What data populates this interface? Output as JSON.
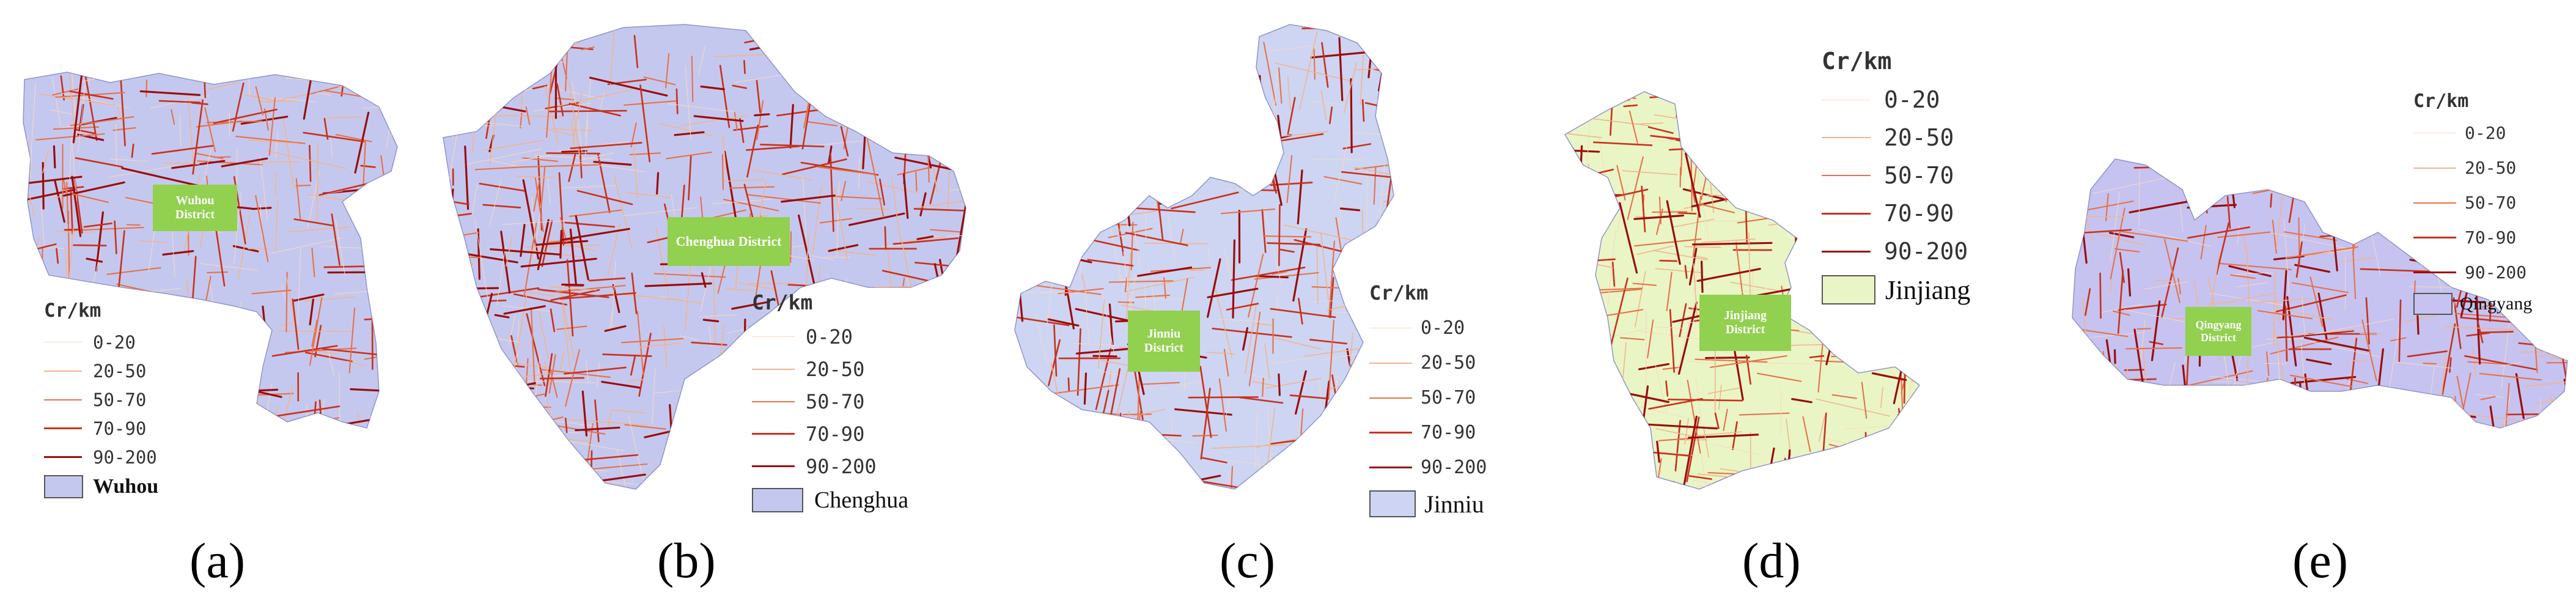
{
  "legend": {
    "title": "Cr/km",
    "classes": [
      {
        "range": "0-20",
        "color": "#f7d9c4"
      },
      {
        "range": "20-50",
        "color": "#f0b48f"
      },
      {
        "range": "50-70",
        "color": "#e6714a"
      },
      {
        "range": "70-90",
        "color": "#c8321e"
      },
      {
        "range": "90-200",
        "color": "#9a0d0d"
      }
    ]
  },
  "panels": [
    {
      "id": "a",
      "label_open": "(",
      "letter": "a",
      "label_close": ")",
      "badge_line1": "Wuhou",
      "badge_line2": "District",
      "legend_district": "Wuhou",
      "fill": "#c5c8ee"
    },
    {
      "id": "b",
      "label_open": "(",
      "letter": "b",
      "label_close": ")",
      "badge_line1": "Chenghua District",
      "badge_line2": "",
      "legend_district": "Chenghua",
      "fill": "#c5c8ee"
    },
    {
      "id": "c",
      "label_open": "(",
      "letter": "c",
      "label_close": ")",
      "badge_line1": "Jinniu",
      "badge_line2": "District",
      "legend_district": "Jinniu",
      "fill": "#cdd5f2"
    },
    {
      "id": "d",
      "label_open": "(",
      "letter": "d",
      "label_close": ")",
      "badge_line1": "Jinjiang",
      "badge_line2": "District",
      "legend_district": "Jinjiang",
      "fill": "#e9f5c5"
    },
    {
      "id": "e",
      "label_open": "(",
      "letter": "e",
      "label_close": ")",
      "badge_line1": "Qingyang",
      "badge_line2": "District",
      "legend_district": "Qingyang",
      "fill": "#c6c3f0"
    }
  ]
}
